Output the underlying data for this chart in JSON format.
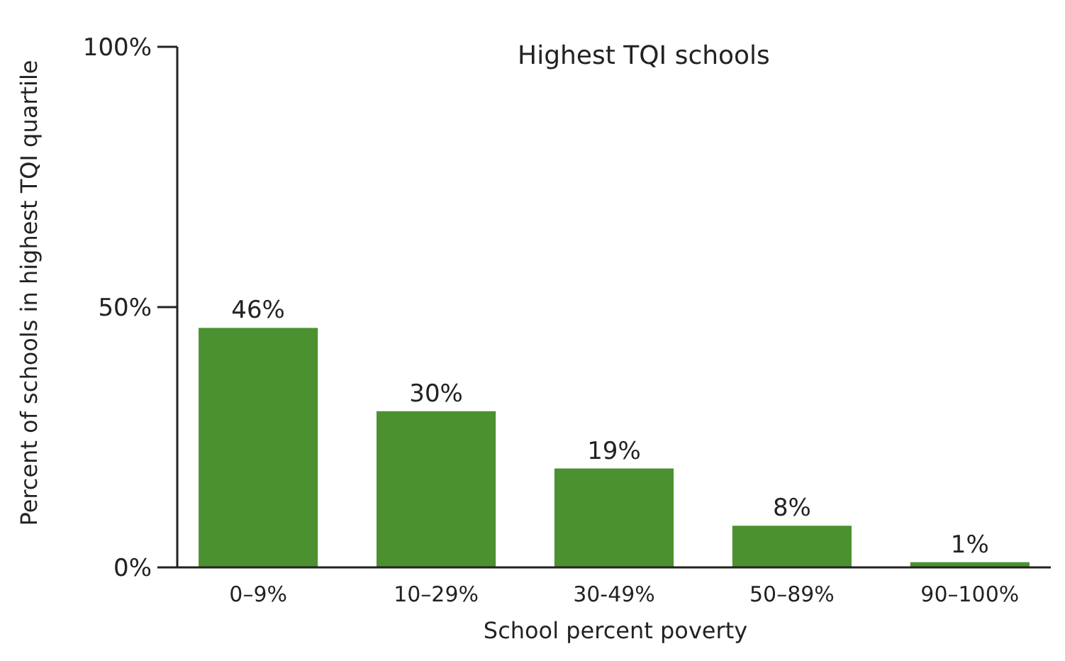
{
  "chart_data": {
    "type": "bar",
    "title": "Highest TQI schools",
    "xlabel": "School percent poverty",
    "ylabel": "Percent of schools in highest TQI quartile",
    "categories": [
      "0–9%",
      "10–29%",
      "30-49%",
      "50–89%",
      "90–100%"
    ],
    "values": [
      46,
      30,
      19,
      8,
      1
    ],
    "color": "#4b9130",
    "data_labels": true,
    "value_labels": [
      "46%",
      "30%",
      "19%",
      "8%",
      "1%"
    ],
    "ylim": [
      0,
      100
    ],
    "yticks": [
      {
        "value": 0,
        "label": "0%"
      },
      {
        "value": 50,
        "label": "50%"
      },
      {
        "value": 100,
        "label": "100%"
      }
    ],
    "grid": false
  }
}
